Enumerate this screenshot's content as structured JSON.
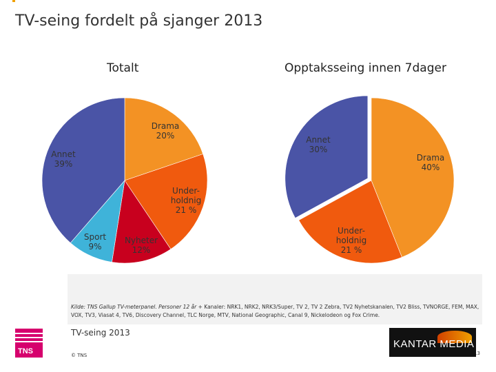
{
  "title": "TV-seing fordelt på sjanger 2013",
  "chart_data": [
    {
      "type": "pie",
      "title": "Totalt",
      "slices": [
        {
          "name": "Drama",
          "value": 20,
          "label_name": "Drama",
          "label_value": "20%",
          "color": "#f39224"
        },
        {
          "name": "Underholdnig",
          "value": 21,
          "label_name": "Under-\nholdnig",
          "label_value": "21 %",
          "color": "#f05a0e"
        },
        {
          "name": "Nyheter",
          "value": 12,
          "label_name": "Nyheter",
          "label_value": "12%",
          "color": "#c8001e"
        },
        {
          "name": "Sport",
          "value": 9,
          "label_name": "Sport",
          "label_value": "9%",
          "color": "#3fb3d9"
        },
        {
          "name": "Annet",
          "value": 39,
          "label_name": "Annet",
          "label_value": "39%",
          "color": "#4a54a6"
        }
      ]
    },
    {
      "type": "pie",
      "title": "Opptaksseing innen 7dager",
      "slices": [
        {
          "name": "Drama",
          "value": 40,
          "label_name": "Drama",
          "label_value": "40%",
          "color": "#f39224"
        },
        {
          "name": "Underholdnig",
          "value": 21,
          "label_name": "Under-\nholdnig",
          "label_value": "21 %",
          "color": "#f05a0e"
        },
        {
          "name": "Annet",
          "value": 30,
          "label_name": "Annet",
          "label_value": "30%",
          "color": "#4a54a6"
        }
      ]
    }
  ],
  "source": {
    "prefix": "Kilde: TNS Gallup TV-meterpanel. Personer 12 år + ",
    "body": "Kanaler: NRK1, NRK2, NRK3/Super, TV 2, TV 2 Zebra, TV2 Nyhetskanalen, TV2 Bliss, TVNORGE, FEM, MAX, VOX, TV3, Viasat 4, TV6, Discovery Channel, TLC Norge, MTV, National Geographic, Canal 9, Nickelodeon og Fox Crime."
  },
  "footer": {
    "title": "TV-seing 2013",
    "copyright": "© TNS",
    "page_number": "13",
    "tns_logo": "TNS",
    "kantar_logo": "KANTAR MEDIA"
  }
}
